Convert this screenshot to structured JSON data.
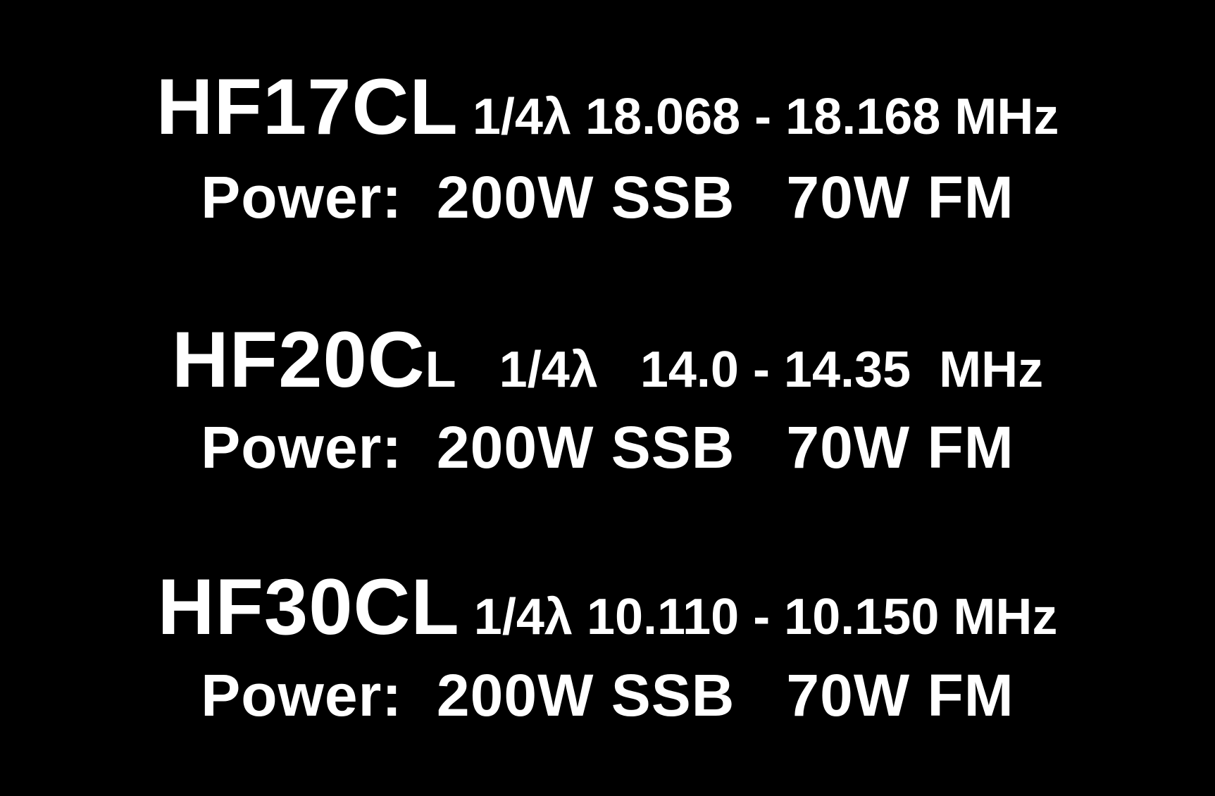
{
  "labels": [
    {
      "model": "HF17CL",
      "spec": " 1/4λ 18.068 - 18.168 MHz",
      "power": "Power:  200W SSB   70W FM"
    },
    {
      "model_main": "HF20C",
      "model_small": "L",
      "spec": "   1/4λ   14.0 - 14.35  MHz",
      "power": "Power:  200W SSB   70W FM"
    },
    {
      "model": "HF30CL",
      "spec": " 1/4λ 10.110 - 10.150 MHz",
      "power": "Power:  200W SSB   70W FM"
    }
  ],
  "colors": {
    "background": "#000000",
    "text": "#ffffff"
  }
}
